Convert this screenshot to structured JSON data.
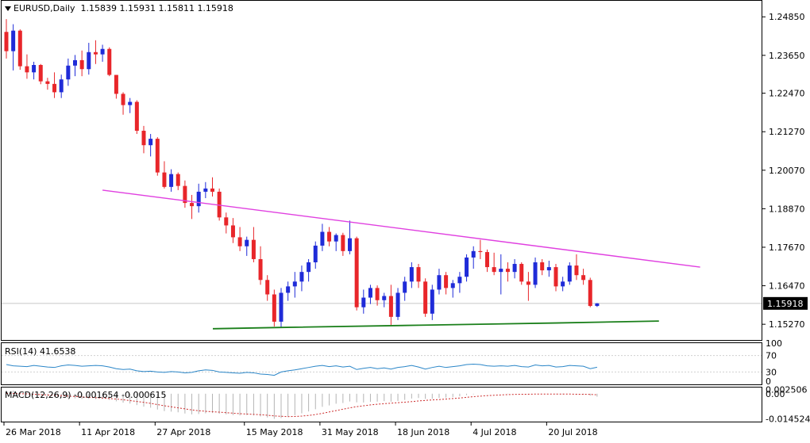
{
  "header": {
    "symbol_tf": "EURUSD,Daily",
    "ohlc": "1.15839 1.15931 1.15811 1.15918"
  },
  "current_price_label": "1.15918",
  "colors": {
    "bull": "#1f2bd8",
    "bear": "#e8262a",
    "resistance": "#e040e0",
    "support": "#1a7f1a",
    "rsi": "#2a86c8",
    "macd_hist": "#b4b4b4",
    "macd_signal": "#cc2a2a"
  },
  "chart_data": {
    "type": "candlestick",
    "price_axis_ticks": [
      "1.24850",
      "1.23650",
      "1.22470",
      "1.21270",
      "1.20070",
      "1.18870",
      "1.17670",
      "1.16470",
      "1.15270"
    ],
    "price_ylim": [
      1.1478,
      1.2535
    ],
    "date_ticks": [
      "26 Mar 2018",
      "11 Apr 2018",
      "27 Apr 2018",
      "15 May 2018",
      "31 May 2018",
      "18 Jun 2018",
      "4 Jul 2018",
      "20 Jul 2018"
    ],
    "candles": [
      [
        1.2438,
        1.2478,
        1.2355,
        1.2378
      ],
      [
        1.2378,
        1.2462,
        1.2318,
        1.2442
      ],
      [
        1.2442,
        1.2446,
        1.232,
        1.2331
      ],
      [
        1.2331,
        1.2368,
        1.2292,
        1.2312
      ],
      [
        1.2312,
        1.2345,
        1.229,
        1.2335
      ],
      [
        1.2335,
        1.2338,
        1.2275,
        1.2284
      ],
      [
        1.2284,
        1.2295,
        1.2258,
        1.2276
      ],
      [
        1.2276,
        1.2312,
        1.2232,
        1.225
      ],
      [
        1.225,
        1.2305,
        1.2232,
        1.229
      ],
      [
        1.229,
        1.2355,
        1.227,
        1.2333
      ],
      [
        1.2333,
        1.2366,
        1.23,
        1.235
      ],
      [
        1.235,
        1.238,
        1.23,
        1.2322
      ],
      [
        1.2322,
        1.2404,
        1.2305,
        1.2375
      ],
      [
        1.2375,
        1.2412,
        1.2338,
        1.2368
      ],
      [
        1.2368,
        1.2398,
        1.2345,
        1.2385
      ],
      [
        1.2385,
        1.239,
        1.23,
        1.2304
      ],
      [
        1.2304,
        1.2304,
        1.223,
        1.2245
      ],
      [
        1.2245,
        1.225,
        1.218,
        1.221
      ],
      [
        1.221,
        1.2232,
        1.2185,
        1.222
      ],
      [
        1.222,
        1.2225,
        1.212,
        1.213
      ],
      [
        1.213,
        1.2145,
        1.206,
        1.2085
      ],
      [
        1.2085,
        1.212,
        1.205,
        1.2105
      ],
      [
        1.2105,
        1.211,
        1.199,
        1.2
      ],
      [
        1.2,
        1.2035,
        1.195,
        1.1955
      ],
      [
        1.1955,
        1.201,
        1.194,
        1.1995
      ],
      [
        1.1995,
        1.2,
        1.1945,
        1.1958
      ],
      [
        1.1958,
        1.1975,
        1.189,
        1.1905
      ],
      [
        1.1905,
        1.193,
        1.1855,
        1.1895
      ],
      [
        1.1895,
        1.1965,
        1.1875,
        1.194
      ],
      [
        1.194,
        1.197,
        1.192,
        1.195
      ],
      [
        1.195,
        1.1985,
        1.1925,
        1.194
      ],
      [
        1.194,
        1.195,
        1.185,
        1.186
      ],
      [
        1.186,
        1.1875,
        1.181,
        1.1835
      ],
      [
        1.1835,
        1.1858,
        1.178,
        1.1798
      ],
      [
        1.1798,
        1.183,
        1.1755,
        1.177
      ],
      [
        1.177,
        1.18,
        1.174,
        1.179
      ],
      [
        1.179,
        1.183,
        1.172,
        1.173
      ],
      [
        1.173,
        1.177,
        1.165,
        1.1665
      ],
      [
        1.1665,
        1.168,
        1.16,
        1.162
      ],
      [
        1.162,
        1.1635,
        1.152,
        1.1535
      ],
      [
        1.1535,
        1.164,
        1.1515,
        1.1625
      ],
      [
        1.1625,
        1.166,
        1.16,
        1.1645
      ],
      [
        1.1645,
        1.169,
        1.161,
        1.166
      ],
      [
        1.166,
        1.171,
        1.163,
        1.169
      ],
      [
        1.169,
        1.173,
        1.166,
        1.172
      ],
      [
        1.172,
        1.1785,
        1.17,
        1.1772
      ],
      [
        1.1772,
        1.184,
        1.1755,
        1.1815
      ],
      [
        1.1815,
        1.183,
        1.177,
        1.1785
      ],
      [
        1.1785,
        1.181,
        1.1755,
        1.1805
      ],
      [
        1.1805,
        1.1812,
        1.174,
        1.1755
      ],
      [
        1.1755,
        1.185,
        1.1745,
        1.1795
      ],
      [
        1.1795,
        1.18,
        1.157,
        1.158
      ],
      [
        1.158,
        1.1635,
        1.156,
        1.161
      ],
      [
        1.161,
        1.165,
        1.159,
        1.164
      ],
      [
        1.164,
        1.1648,
        1.1585,
        1.1602
      ],
      [
        1.1602,
        1.1625,
        1.158,
        1.1615
      ],
      [
        1.1615,
        1.165,
        1.1525,
        1.155
      ],
      [
        1.155,
        1.164,
        1.154,
        1.1625
      ],
      [
        1.1625,
        1.1675,
        1.16,
        1.166
      ],
      [
        1.166,
        1.172,
        1.164,
        1.1705
      ],
      [
        1.1705,
        1.1715,
        1.164,
        1.166
      ],
      [
        1.166,
        1.167,
        1.155,
        1.156
      ],
      [
        1.156,
        1.165,
        1.154,
        1.1635
      ],
      [
        1.1635,
        1.17,
        1.162,
        1.168
      ],
      [
        1.168,
        1.169,
        1.162,
        1.164
      ],
      [
        1.164,
        1.1665,
        1.161,
        1.1655
      ],
      [
        1.1655,
        1.169,
        1.1625,
        1.1675
      ],
      [
        1.1675,
        1.1745,
        1.166,
        1.1735
      ],
      [
        1.1735,
        1.177,
        1.17,
        1.1755
      ],
      [
        1.1755,
        1.179,
        1.173,
        1.1752
      ],
      [
        1.1752,
        1.176,
        1.169,
        1.1705
      ],
      [
        1.1705,
        1.175,
        1.168,
        1.169
      ],
      [
        1.169,
        1.1745,
        1.162,
        1.17
      ],
      [
        1.17,
        1.172,
        1.166,
        1.169
      ],
      [
        1.169,
        1.173,
        1.167,
        1.1715
      ],
      [
        1.1715,
        1.172,
        1.165,
        1.166
      ],
      [
        1.166,
        1.169,
        1.16,
        1.165
      ],
      [
        1.165,
        1.1735,
        1.164,
        1.172
      ],
      [
        1.172,
        1.173,
        1.168,
        1.1695
      ],
      [
        1.1695,
        1.1725,
        1.1675,
        1.1705
      ],
      [
        1.1705,
        1.1715,
        1.163,
        1.1645
      ],
      [
        1.1645,
        1.1675,
        1.163,
        1.166
      ],
      [
        1.166,
        1.172,
        1.165,
        1.171
      ],
      [
        1.171,
        1.1745,
        1.1665,
        1.168
      ],
      [
        1.168,
        1.17,
        1.165,
        1.1665
      ],
      [
        1.1665,
        1.1672,
        1.158,
        1.1584
      ],
      [
        1.1584,
        1.1593,
        1.1581,
        1.1592
      ]
    ],
    "resistance_line": {
      "from": [
        1.1945,
        14
      ],
      "to": [
        1.1705,
        101
      ]
    },
    "support_line": {
      "from": [
        1.1513,
        0
      ],
      "to": [
        1.1537,
        95
      ]
    },
    "rsi": {
      "label": "RSI(14) 41.6538",
      "axis_ticks": [
        "100",
        "70",
        "30",
        "0"
      ],
      "ylim": [
        0,
        100
      ],
      "values": [
        48,
        45,
        44,
        43,
        46,
        44,
        42,
        41,
        45,
        47,
        46,
        44,
        45,
        46,
        45,
        42,
        38,
        36,
        37,
        33,
        31,
        32,
        30,
        29,
        31,
        30,
        28,
        29,
        33,
        35,
        34,
        30,
        29,
        28,
        27,
        29,
        28,
        25,
        24,
        22,
        30,
        33,
        35,
        38,
        41,
        44,
        46,
        43,
        45,
        42,
        44,
        36,
        39,
        41,
        38,
        40,
        37,
        41,
        43,
        46,
        42,
        37,
        41,
        44,
        41,
        43,
        45,
        48,
        49,
        48,
        45,
        44,
        45,
        44,
        46,
        43,
        42,
        47,
        45,
        46,
        42,
        43,
        46,
        45,
        44,
        38,
        41.65
      ]
    },
    "macd": {
      "label": "MACD(12,26,9) -0.001654 -0.000615",
      "axis_ticks": [
        "0.002506",
        "0.00",
        "-0.014524"
      ],
      "ylim": [
        -0.0162,
        0.0036
      ],
      "histogram": [
        0.002,
        0.0018,
        0.0012,
        0.0005,
        -0.0002,
        -0.0008,
        -0.0014,
        -0.002,
        -0.0024,
        -0.0026,
        -0.0027,
        -0.003,
        -0.003,
        -0.0031,
        -0.0031,
        -0.0036,
        -0.0044,
        -0.0052,
        -0.0057,
        -0.0066,
        -0.0075,
        -0.0081,
        -0.0092,
        -0.0101,
        -0.0104,
        -0.0108,
        -0.0115,
        -0.012,
        -0.0118,
        -0.0114,
        -0.0112,
        -0.0116,
        -0.012,
        -0.0124,
        -0.0126,
        -0.0124,
        -0.0126,
        -0.0132,
        -0.0138,
        -0.0146,
        -0.0141,
        -0.0133,
        -0.0124,
        -0.0114,
        -0.0103,
        -0.009,
        -0.0076,
        -0.0068,
        -0.0058,
        -0.0054,
        -0.0045,
        -0.005,
        -0.0051,
        -0.0047,
        -0.0046,
        -0.0043,
        -0.0046,
        -0.0042,
        -0.0036,
        -0.0028,
        -0.0025,
        -0.003,
        -0.0029,
        -0.0024,
        -0.0023,
        -0.0019,
        -0.0015,
        -0.0008,
        -0.0003,
        0.0,
        0.0,
        0.0,
        0.0,
        -0.0001,
        0.0,
        0.0,
        -0.0001,
        0.0,
        0.0,
        0.0,
        -0.0002,
        -0.0003,
        -0.0001,
        -0.0003,
        -0.0005,
        -0.0011,
        -0.0017
      ],
      "signal": [
        0.0002,
        0.0001,
        0.0,
        -0.0001,
        -0.0003,
        -0.0005,
        -0.0007,
        -0.0009,
        -0.0011,
        -0.0014,
        -0.0016,
        -0.0019,
        -0.0021,
        -0.0023,
        -0.0025,
        -0.0028,
        -0.0031,
        -0.0035,
        -0.004,
        -0.0045,
        -0.005,
        -0.0056,
        -0.0063,
        -0.007,
        -0.0076,
        -0.0082,
        -0.0088,
        -0.0094,
        -0.0099,
        -0.0102,
        -0.0105,
        -0.0107,
        -0.011,
        -0.0113,
        -0.0116,
        -0.0118,
        -0.012,
        -0.0122,
        -0.0125,
        -0.0129,
        -0.0131,
        -0.0133,
        -0.0132,
        -0.013,
        -0.0126,
        -0.0121,
        -0.0114,
        -0.0106,
        -0.0098,
        -0.009,
        -0.0082,
        -0.0075,
        -0.007,
        -0.0065,
        -0.0061,
        -0.0058,
        -0.0055,
        -0.0052,
        -0.0049,
        -0.0046,
        -0.0042,
        -0.0039,
        -0.0036,
        -0.0034,
        -0.0031,
        -0.0028,
        -0.0025,
        -0.0021,
        -0.0017,
        -0.0014,
        -0.0011,
        -0.0009,
        -0.0007,
        -0.0005,
        -0.0004,
        -0.0003,
        -0.0003,
        -0.0002,
        -0.0002,
        -0.0002,
        -0.0002,
        -0.0002,
        -0.0002,
        -0.0003,
        -0.0003,
        -0.0004,
        -0.0006
      ]
    }
  }
}
